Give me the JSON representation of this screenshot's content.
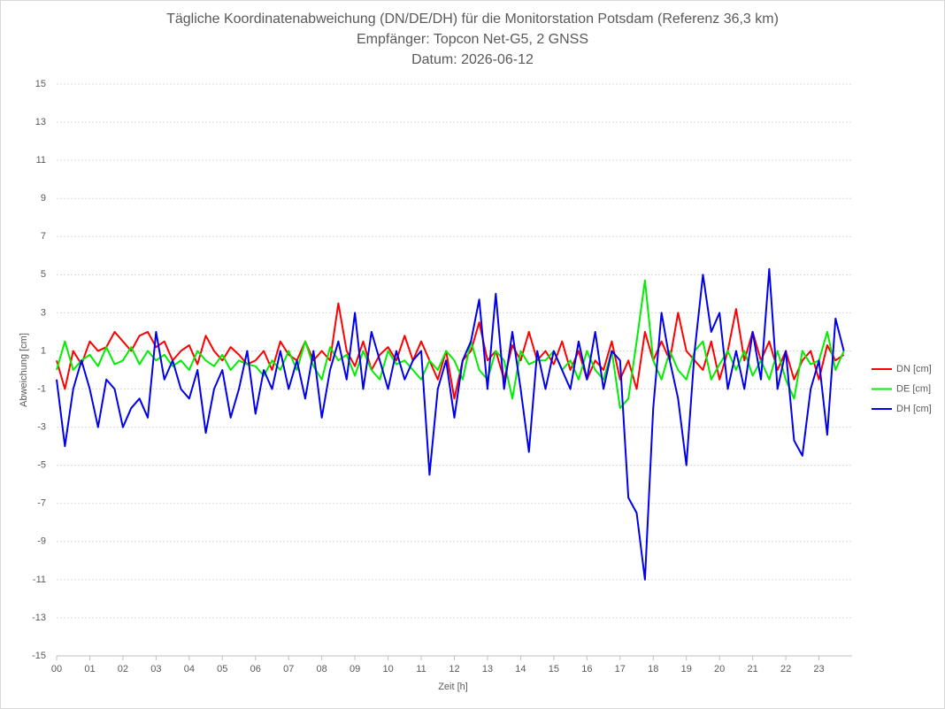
{
  "chart_data": {
    "type": "line",
    "title": "Tägliche Koordinatenabweichung (DN/DE/DH) für die Monitorstation Potsdam (Referenz 36,3 km)",
    "subtitle": "Empfänger: Topcon Net-G5, 2 GNSS",
    "date_line": "Datum: 2026-06-12",
    "xlabel": "Zeit [h]",
    "ylabel": "Abweichung [cm]",
    "x": [
      0,
      0.25,
      0.5,
      0.75,
      1,
      1.25,
      1.5,
      1.75,
      2,
      2.25,
      2.5,
      2.75,
      3,
      3.25,
      3.5,
      3.75,
      4,
      4.25,
      4.5,
      4.75,
      5,
      5.25,
      5.5,
      5.75,
      6,
      6.25,
      6.5,
      6.75,
      7,
      7.25,
      7.5,
      7.75,
      8,
      8.25,
      8.5,
      8.75,
      9,
      9.25,
      9.5,
      9.75,
      10,
      10.25,
      10.5,
      10.75,
      11,
      11.25,
      11.5,
      11.75,
      12,
      12.25,
      12.5,
      12.75,
      13,
      13.25,
      13.5,
      13.75,
      14,
      14.25,
      14.5,
      14.75,
      15,
      15.25,
      15.5,
      15.75,
      16,
      16.25,
      16.5,
      16.75,
      17,
      17.25,
      17.5,
      17.75,
      18,
      18.25,
      18.5,
      18.75,
      19,
      19.25,
      19.5,
      19.75,
      20,
      20.25,
      20.5,
      20.75,
      21,
      21.25,
      21.5,
      21.75,
      22,
      22.25,
      22.5,
      22.75,
      23,
      23.25,
      23.5,
      23.75
    ],
    "series": [
      {
        "name": "DN [cm]",
        "color": "#ff0000",
        "values": [
          0.5,
          -1,
          1,
          0.3,
          1.5,
          1,
          1.2,
          2,
          1.5,
          1,
          1.8,
          2,
          1.2,
          1.5,
          0.5,
          1,
          1.3,
          0.3,
          1.8,
          1,
          0.5,
          1.2,
          0.8,
          0.3,
          0.5,
          1,
          0,
          1.5,
          0.8,
          0.5,
          1.5,
          0.5,
          1,
          0.5,
          3.5,
          1,
          0.2,
          1.5,
          0,
          0.8,
          1.2,
          0.5,
          1.8,
          0.5,
          1.5,
          0.5,
          -0.5,
          1,
          -1.5,
          0.5,
          1,
          2.5,
          0.5,
          1,
          -0.5,
          1.3,
          0.5,
          2,
          0.5,
          1,
          0.3,
          1.5,
          0,
          1,
          -0.5,
          0.5,
          0,
          1.5,
          -0.5,
          0.5,
          -1,
          2,
          0.5,
          1.5,
          0.5,
          3,
          1,
          0.5,
          0,
          1.5,
          -0.5,
          1,
          3.2,
          0.5,
          2,
          0.5,
          1.5,
          0,
          1,
          -0.5,
          0.5,
          1,
          -0.5,
          1.3,
          0.5,
          0.8
        ]
      },
      {
        "name": "DE [cm]",
        "color": "#00ee00",
        "values": [
          0,
          1.5,
          0,
          0.5,
          0.8,
          0.2,
          1.2,
          0.3,
          0.5,
          1.2,
          0.3,
          1,
          0.5,
          0.8,
          0.2,
          0.5,
          0,
          1,
          0.5,
          0.2,
          0.8,
          0,
          0.5,
          0.3,
          0.2,
          -0.3,
          0.5,
          0,
          1,
          0,
          1.5,
          0.2,
          -0.5,
          1.2,
          0.5,
          0.8,
          -0.3,
          1,
          0,
          -0.5,
          1,
          0.3,
          0.5,
          0,
          -0.5,
          0.5,
          0,
          1,
          0.5,
          -0.5,
          1.5,
          0,
          -0.5,
          1,
          0.5,
          -1.5,
          1,
          0.3,
          0.5,
          0.5,
          1,
          0,
          0.5,
          -0.5,
          1,
          0,
          -0.5,
          1,
          -2,
          -1.5,
          1.5,
          4.7,
          0.5,
          -0.5,
          1,
          0,
          -0.5,
          1,
          1.5,
          -0.5,
          0.3,
          1,
          0,
          1,
          -0.3,
          0.5,
          -0.5,
          1,
          -0.5,
          -1.5,
          1,
          0.3,
          0.5,
          2,
          0,
          1
        ]
      },
      {
        "name": "DH [cm]",
        "color": "#0000ee",
        "values": [
          -0.5,
          -4,
          -1,
          0.5,
          -1,
          -3,
          -0.5,
          -1,
          -3,
          -2,
          -1.5,
          -2.5,
          2,
          -0.5,
          0.5,
          -1,
          -1.5,
          0,
          -3.3,
          -1,
          0,
          -2.5,
          -1,
          1,
          -2.3,
          0,
          -1,
          1,
          -1,
          0.5,
          -1.5,
          1,
          -2.5,
          0,
          1.5,
          -0.5,
          3,
          -1,
          2,
          0.5,
          -1,
          1,
          -0.5,
          0.5,
          1,
          -5.5,
          -1,
          0.5,
          -2.5,
          0.5,
          1.5,
          3.7,
          -1,
          4,
          -1,
          2,
          -1,
          -4.3,
          1,
          -1,
          1,
          0,
          -1,
          1.5,
          -0.5,
          2,
          -1,
          1,
          0.5,
          -6.7,
          -7.5,
          -11,
          -2,
          3,
          0.5,
          -1.5,
          -5,
          1,
          5,
          2,
          3,
          -1,
          1,
          -1,
          2,
          -0.5,
          5.3,
          -1,
          1,
          -3.7,
          -4.5,
          -1,
          0.5,
          -3.4,
          2.7,
          1
        ]
      }
    ],
    "xlim": [
      0,
      24
    ],
    "xticks": [
      {
        "value": 0,
        "label": "00"
      },
      {
        "value": 1,
        "label": "01"
      },
      {
        "value": 2,
        "label": "02"
      },
      {
        "value": 3,
        "label": "03"
      },
      {
        "value": 4,
        "label": "04"
      },
      {
        "value": 5,
        "label": "05"
      },
      {
        "value": 6,
        "label": "06"
      },
      {
        "value": 7,
        "label": "07"
      },
      {
        "value": 8,
        "label": "08"
      },
      {
        "value": 9,
        "label": "09"
      },
      10,
      11,
      12,
      13,
      14,
      15,
      16,
      17,
      18,
      19,
      20,
      21,
      22,
      23
    ],
    "ylim": [
      -15,
      15
    ],
    "yticks": [
      -15,
      -13,
      -11,
      -9,
      -7,
      -5,
      -3,
      -1,
      1,
      3,
      5,
      7,
      9,
      11,
      13,
      15
    ],
    "grid": true,
    "legend": "right"
  }
}
